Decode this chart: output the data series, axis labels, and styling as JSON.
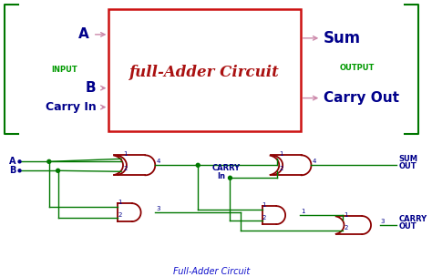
{
  "bg_color": "#ffffff",
  "top_box_color": "#cc1111",
  "top_bracket_color": "#007700",
  "title_color": "#aa1111",
  "input_output_color": "#009900",
  "label_color": "#00008B",
  "arrow_color": "#cc88aa",
  "gate_color": "#8B0000",
  "wire_color": "#007700",
  "dot_color": "#007700",
  "bottom_title_color": "#1111cc",
  "top_title": "full-Adder Circuit",
  "input_label": "INPUT",
  "output_label": "OUTPUT",
  "bottom_title": "Full-Adder Circuit"
}
